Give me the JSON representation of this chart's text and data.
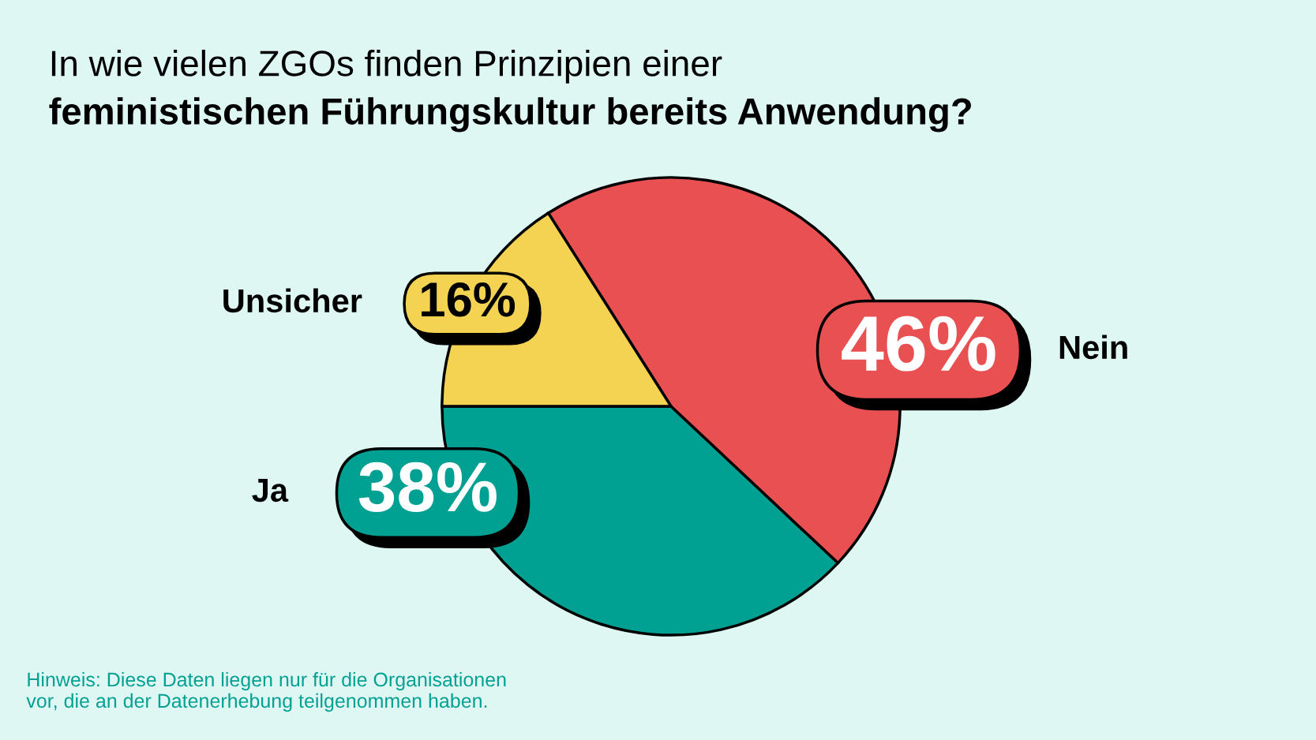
{
  "chart_data": {
    "type": "pie",
    "title": "In wie vielen ZGOs finden Prinzipien einer",
    "subtitle": "feministischen Führungskultur bereits Anwendung?",
    "categories": [
      "Ja",
      "Nein",
      "Unsicher"
    ],
    "values": [
      38,
      46,
      16
    ],
    "value_labels": [
      "38%",
      "46%",
      "16%"
    ],
    "colors": [
      "#00a093",
      "#e85052",
      "#f4d352"
    ],
    "annotations": [
      "Hinweis: Diese Daten liegen nur für die Organisationen\nvor, die an der Datenerhebung teilgenommen haben."
    ]
  }
}
